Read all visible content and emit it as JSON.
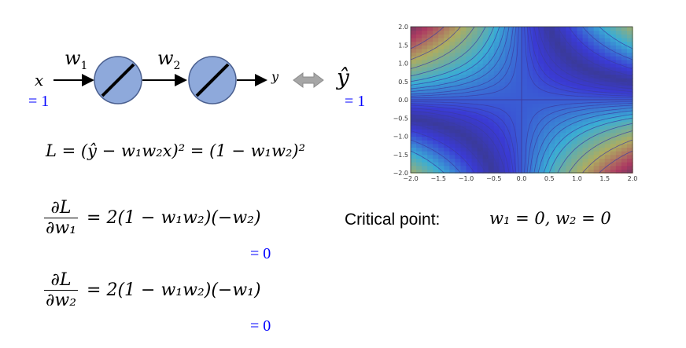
{
  "diagram": {
    "input_label": "x",
    "input_value": "= 1",
    "weight1": "w",
    "weight1_sub": "1",
    "weight2": "w",
    "weight2_sub": "2",
    "output_label": "y",
    "target_label": "ŷ",
    "target_value": "= 1",
    "arrow_icon": "double-arrow-icon",
    "neuron_icon": "linear-activation-icon"
  },
  "loss": {
    "lhs": "L = (ŷ − w",
    "text": "L = (ŷ − w₁w₂x)² = (1 − w₁w₂)²"
  },
  "grad1": {
    "num": "∂L",
    "den": "∂w₁",
    "rhs": "= 2(1 − w₁w₂)(−w₂)",
    "value": "= 0"
  },
  "grad2": {
    "num": "∂L",
    "den": "∂w₂",
    "rhs": "= 2(1 − w₁w₂)(−w₁)",
    "value": "= 0"
  },
  "critical": {
    "label": "Critical point:",
    "value": "w₁ = 0, w₂ = 0"
  },
  "chart_data": {
    "type": "heatmap",
    "function": "(1 - w1*w2)^2",
    "xlim": [
      -2.0,
      2.0
    ],
    "ylim": [
      -2.0,
      2.0
    ],
    "xticks": [
      "−2.0",
      "−1.5",
      "−1.0",
      "−0.5",
      "0.0",
      "0.5",
      "1.0",
      "1.5",
      "2.0"
    ],
    "yticks": [
      "2.0",
      "1.5",
      "1.0",
      "0.5",
      "0.0",
      "−0.5",
      "−1.0",
      "−1.5",
      "−2.0"
    ],
    "colormap": "jet",
    "overlay_color": "#6a6ab0",
    "axis_line_color": "#3c3ca0"
  }
}
